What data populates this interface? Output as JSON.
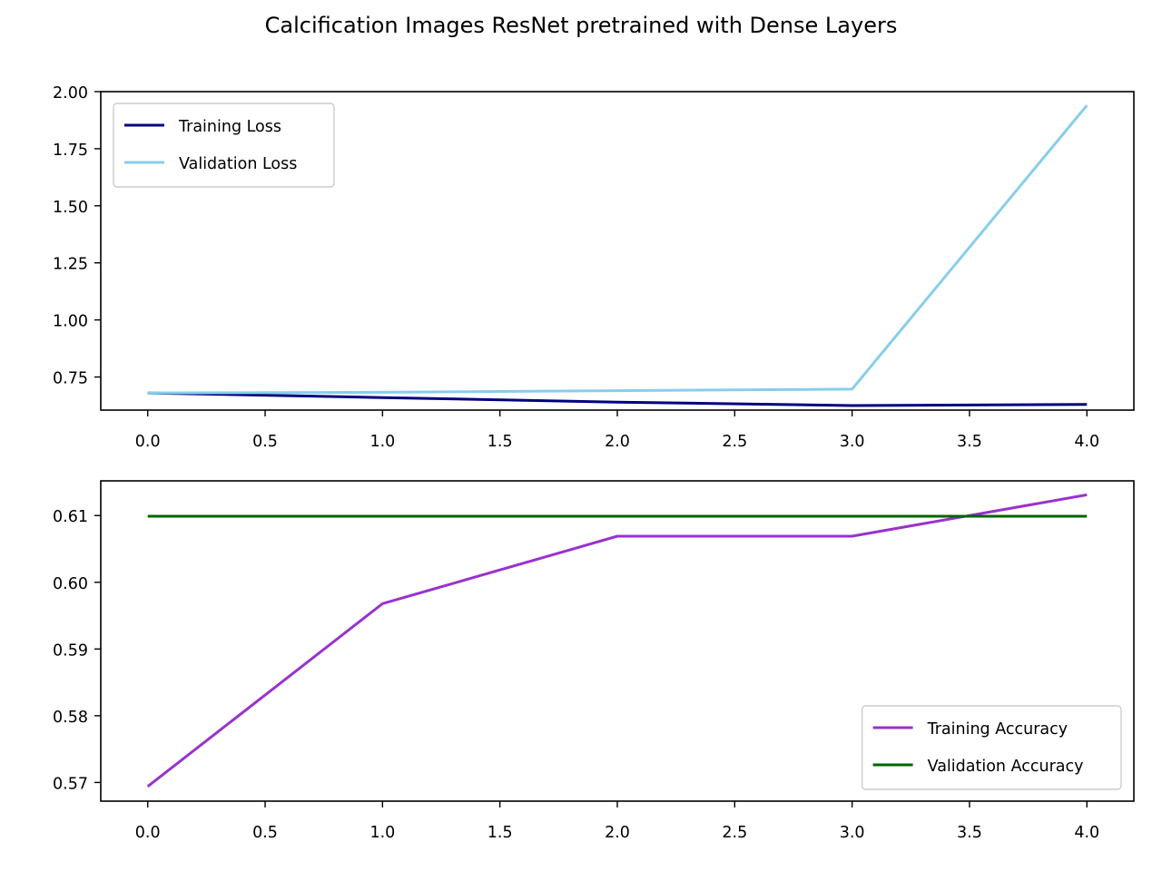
{
  "figure": {
    "title": "Calcification Images ResNet pretrained with Dense Layers"
  },
  "chart_data": [
    {
      "type": "line",
      "title": "",
      "xlabel": "",
      "ylabel": "",
      "xlim": [
        -0.2,
        4.2
      ],
      "ylim": [
        0.605,
        2.0
      ],
      "x_ticks": [
        0.0,
        0.5,
        1.0,
        1.5,
        2.0,
        2.5,
        3.0,
        3.5,
        4.0
      ],
      "x_tick_labels": [
        "0.0",
        "0.5",
        "1.0",
        "1.5",
        "2.0",
        "2.5",
        "3.0",
        "3.5",
        "4.0"
      ],
      "y_ticks": [
        0.75,
        1.0,
        1.25,
        1.5,
        1.75,
        2.0
      ],
      "y_tick_labels": [
        "0.75",
        "1.00",
        "1.25",
        "1.50",
        "1.75",
        "2.00"
      ],
      "grid": false,
      "legend_position": "upper-left",
      "series": [
        {
          "name": "Training Loss",
          "color": "#000080",
          "x": [
            0,
            1,
            2,
            3,
            4
          ],
          "y": [
            0.68,
            0.66,
            0.64,
            0.625,
            0.63
          ]
        },
        {
          "name": "Validation Loss",
          "color": "#87ceeb",
          "x": [
            0,
            1,
            2,
            3,
            4
          ],
          "y": [
            0.68,
            0.683,
            0.69,
            0.697,
            1.94
          ]
        }
      ]
    },
    {
      "type": "line",
      "title": "",
      "xlabel": "",
      "ylabel": "",
      "xlim": [
        -0.2,
        4.2
      ],
      "ylim": [
        0.5672,
        0.6152
      ],
      "x_ticks": [
        0.0,
        0.5,
        1.0,
        1.5,
        2.0,
        2.5,
        3.0,
        3.5,
        4.0
      ],
      "x_tick_labels": [
        "0.0",
        "0.5",
        "1.0",
        "1.5",
        "2.0",
        "2.5",
        "3.0",
        "3.5",
        "4.0"
      ],
      "y_ticks": [
        0.57,
        0.58,
        0.59,
        0.6,
        0.61
      ],
      "y_tick_labels": [
        "0.57",
        "0.58",
        "0.59",
        "0.60",
        "0.61"
      ],
      "grid": false,
      "legend_position": "lower-right",
      "series": [
        {
          "name": "Training Accuracy",
          "color": "#9932cc",
          "x": [
            0,
            1,
            2,
            3,
            4
          ],
          "y": [
            0.5694,
            0.5968,
            0.6069,
            0.6069,
            0.6131
          ]
        },
        {
          "name": "Validation Accuracy",
          "color": "#006400",
          "x": [
            0,
            1,
            2,
            3,
            4
          ],
          "y": [
            0.6099,
            0.6099,
            0.6099,
            0.6099,
            0.6099
          ]
        }
      ]
    }
  ]
}
